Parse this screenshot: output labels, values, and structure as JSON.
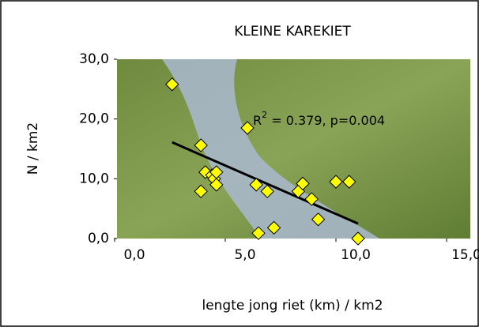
{
  "chart_data": {
    "type": "scatter",
    "title": "KLEINE KAREKIET",
    "x_label": "lengte jong riet (km) / km2",
    "y_label": "N / km2",
    "x": [
      2.6,
      3.9,
      3.9,
      4.1,
      4.4,
      4.5,
      4.6,
      4.6,
      6.0,
      6.4,
      6.5,
      6.9,
      7.2,
      8.3,
      8.5,
      8.9,
      9.2,
      10.0,
      10.6,
      11.0
    ],
    "values": [
      25.8,
      15.6,
      7.9,
      11.1,
      10.6,
      10.0,
      11.1,
      9.0,
      18.5,
      9.0,
      0.9,
      7.9,
      1.8,
      7.9,
      9.2,
      6.6,
      3.2,
      9.5,
      9.5,
      0.0
    ],
    "color": "#ffff00",
    "trendline": {
      "x": [
        2.6,
        11.0
      ],
      "y": [
        16.1,
        2.5
      ],
      "color": "#000000"
    },
    "annotation": {
      "base": "R",
      "superscript": "2",
      "text": " = 0.379, p=0.004"
    },
    "xlim": [
      0,
      15
    ],
    "ylim": [
      0,
      30
    ],
    "xticks": [
      {
        "value": 0,
        "label": "0,0"
      },
      {
        "value": 5,
        "label": "5,0"
      },
      {
        "value": 10,
        "label": "10,0"
      },
      {
        "value": 15,
        "label": "15,0"
      }
    ],
    "yticks": [
      {
        "value": 0,
        "label": "0,0"
      },
      {
        "value": 10,
        "label": "10,0"
      },
      {
        "value": 20,
        "label": "20,0"
      },
      {
        "value": 30,
        "label": "30,0"
      }
    ]
  }
}
